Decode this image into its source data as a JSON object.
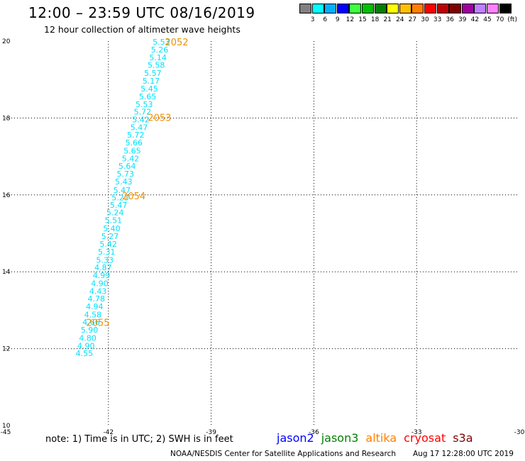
{
  "header": {
    "title": "12:00 – 23:59 UTC 08/16/2019",
    "subtitle": "12 hour collection of altimeter wave heights"
  },
  "color_scale": {
    "colors": [
      "#808080",
      "#00ffff",
      "#00b0ff",
      "#0000ff",
      "#40ff40",
      "#00c000",
      "#008000",
      "#ffff00",
      "#ffc000",
      "#ff8000",
      "#ff0000",
      "#c00000",
      "#800000",
      "#a000a0",
      "#c080ff",
      "#ff80ff",
      "#000000"
    ],
    "labels": [
      "3",
      "6",
      "9",
      "12",
      "15",
      "18",
      "21",
      "24",
      "27",
      "30",
      "33",
      "36",
      "39",
      "42",
      "45",
      "70",
      "(ft)"
    ]
  },
  "chart_data": {
    "type": "scatter",
    "title": "12:00 – 23:59 UTC 08/16/2019",
    "subtitle": "12 hour collection of altimeter wave heights",
    "xlim": [
      -45,
      -30
    ],
    "ylim": [
      10,
      20
    ],
    "x_ticks": [
      "-45",
      "-42",
      "-39",
      "-36",
      "-33",
      "-30"
    ],
    "y_ticks": [
      "10",
      "12",
      "14",
      "16",
      "18",
      "20"
    ],
    "grid": true,
    "grid_style": "dotted",
    "series": [
      {
        "color": "#00e0ff",
        "points": [
          {
            "x": -40.2,
            "y": 19.98,
            "label": "5.53"
          },
          {
            "x": -40.25,
            "y": 19.78,
            "label": "5.26"
          },
          {
            "x": -40.3,
            "y": 19.58,
            "label": "5.14"
          },
          {
            "x": -40.35,
            "y": 19.38,
            "label": "5.58"
          },
          {
            "x": -40.45,
            "y": 19.17,
            "label": "5.57"
          },
          {
            "x": -40.5,
            "y": 18.97,
            "label": "5.17"
          },
          {
            "x": -40.55,
            "y": 18.76,
            "label": "5.45"
          },
          {
            "x": -40.6,
            "y": 18.56,
            "label": "5.65"
          },
          {
            "x": -40.7,
            "y": 18.36,
            "label": "5.53"
          },
          {
            "x": -40.75,
            "y": 18.16,
            "label": "5.72"
          },
          {
            "x": -40.8,
            "y": 17.96,
            "label": "5.42"
          },
          {
            "x": -40.85,
            "y": 17.76,
            "label": "5.47"
          },
          {
            "x": -40.95,
            "y": 17.56,
            "label": "5.72"
          },
          {
            "x": -41.0,
            "y": 17.36,
            "label": "5.66"
          },
          {
            "x": -41.05,
            "y": 17.15,
            "label": "5.65"
          },
          {
            "x": -41.1,
            "y": 16.95,
            "label": "5.42"
          },
          {
            "x": -41.2,
            "y": 16.75,
            "label": "5.64"
          },
          {
            "x": -41.25,
            "y": 16.55,
            "label": "5.73"
          },
          {
            "x": -41.3,
            "y": 16.35,
            "label": "5.43"
          },
          {
            "x": -41.35,
            "y": 16.13,
            "label": "5.47"
          },
          {
            "x": -41.4,
            "y": 15.93,
            "label": "5.23"
          },
          {
            "x": -41.45,
            "y": 15.74,
            "label": "5.47"
          },
          {
            "x": -41.55,
            "y": 15.54,
            "label": "5.24"
          },
          {
            "x": -41.6,
            "y": 15.34,
            "label": "5.51"
          },
          {
            "x": -41.65,
            "y": 15.13,
            "label": "5.40"
          },
          {
            "x": -41.7,
            "y": 14.93,
            "label": "5.27"
          },
          {
            "x": -41.75,
            "y": 14.72,
            "label": "5.42"
          },
          {
            "x": -41.8,
            "y": 14.52,
            "label": "5.31"
          },
          {
            "x": -41.85,
            "y": 14.31,
            "label": "5.33"
          },
          {
            "x": -41.9,
            "y": 14.11,
            "label": "4.87"
          },
          {
            "x": -41.95,
            "y": 13.91,
            "label": "4.99"
          },
          {
            "x": -42.0,
            "y": 13.7,
            "label": "4.90"
          },
          {
            "x": -42.05,
            "y": 13.5,
            "label": "4.43"
          },
          {
            "x": -42.1,
            "y": 13.3,
            "label": "4.78"
          },
          {
            "x": -42.15,
            "y": 13.1,
            "label": "4.94"
          },
          {
            "x": -42.2,
            "y": 12.89,
            "label": "4.58"
          },
          {
            "x": -42.25,
            "y": 12.69,
            "label": "4.66"
          },
          {
            "x": -42.3,
            "y": 12.49,
            "label": "5.90"
          },
          {
            "x": -42.35,
            "y": 12.28,
            "label": "4.80"
          },
          {
            "x": -42.4,
            "y": 12.08,
            "label": "4.90"
          },
          {
            "x": -42.45,
            "y": 11.88,
            "label": "4.55"
          }
        ]
      }
    ],
    "annotations": [
      {
        "x": -40.35,
        "y": 19.98,
        "text": "2052",
        "color": "#f09000"
      },
      {
        "x": -40.85,
        "y": 18.02,
        "text": "2053",
        "color": "#f09000"
      },
      {
        "x": -41.6,
        "y": 15.98,
        "text": "2054",
        "color": "#f09000"
      },
      {
        "x": -42.65,
        "y": 12.68,
        "text": "2055",
        "color": "#f09000"
      }
    ]
  },
  "footer": {
    "note": "note: 1) Time is in UTC; 2) SWH is in feet",
    "legend": [
      {
        "name": "jason2",
        "color": "#0000ff"
      },
      {
        "name": "jason3",
        "color": "#008000"
      },
      {
        "name": "altika",
        "color": "#ff8000"
      },
      {
        "name": "cryosat",
        "color": "#ff0000"
      },
      {
        "name": "s3a",
        "color": "#800000"
      }
    ],
    "credit": "NOAA/NESDIS Center for Satellite Applications and Research",
    "timestamp": "Aug 17 12:28:00 UTC 2019"
  }
}
